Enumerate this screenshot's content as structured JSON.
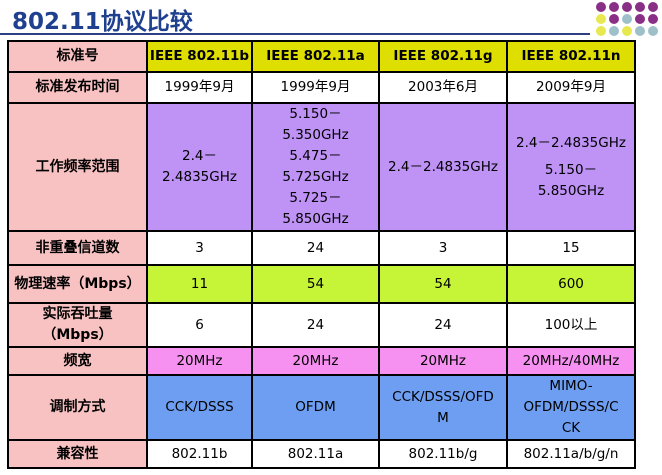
{
  "title": "802.11协议比较",
  "colors": {
    "title": "#1f3f8f",
    "label_bg": "#f9c2c2",
    "header_bg": "#dede00",
    "freq_bg": "#bf92f6",
    "rate_bg": "#c6f437",
    "bandwidth_bg": "#f791f1",
    "modulation_bg": "#6d9ef1"
  },
  "table": {
    "header": {
      "label": "标准号",
      "cols": [
        "IEEE 802.11b",
        "IEEE 802.11a",
        "IEEE 802.11g",
        "IEEE 802.11n"
      ]
    },
    "release": {
      "label": "标准发布时间",
      "values": [
        "1999年9月",
        "1999年9月",
        "2003年6月",
        "2009年9月"
      ]
    },
    "frequency": {
      "label": "工作频率范围",
      "b": [
        "2.4－",
        "2.4835GHz"
      ],
      "a": [
        "5.150－",
        "5.350GHz",
        "5.475－",
        "5.725GHz",
        "5.725－",
        "5.850GHz"
      ],
      "g": "2.4－2.4835GHz",
      "n": [
        "2.4－2.4835GHz",
        "5.150－",
        "5.850GHz"
      ]
    },
    "channels": {
      "label": "非重叠信道数",
      "values": [
        "3",
        "24",
        "3",
        "15"
      ]
    },
    "rate": {
      "label": "物理速率（Mbps）",
      "values": [
        "11",
        "54",
        "54",
        "600"
      ]
    },
    "throughput": {
      "label": [
        "实际吞吐量",
        "（Mbps）"
      ],
      "values": [
        "6",
        "24",
        "24",
        "100以上"
      ]
    },
    "bandwidth": {
      "label": "频宽",
      "values": [
        "20MHz",
        "20MHz",
        "20MHz",
        "20MHz/40MHz"
      ]
    },
    "modulation": {
      "label": "调制方式",
      "b": "CCK/DSSS",
      "a": "OFDM",
      "g": [
        "CCK/DSSS/OFD",
        "M"
      ],
      "n": [
        "MIMO-",
        "OFDM/DSSS/C",
        "CK"
      ]
    },
    "compat": {
      "label": "兼容性",
      "values": [
        "802.11b",
        "802.11a",
        "802.11b/g",
        "802.11a/b/g/n"
      ]
    }
  }
}
